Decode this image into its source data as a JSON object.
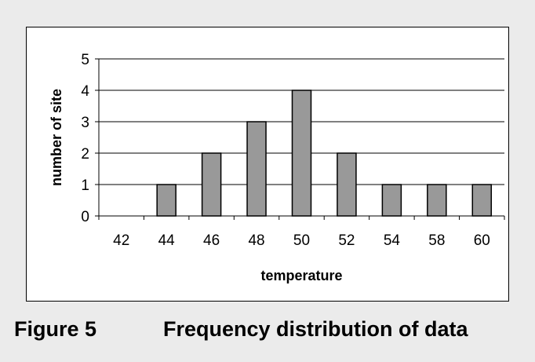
{
  "caption": {
    "figure_number": "Figure 5",
    "text": "Frequency distribution of data"
  },
  "chart_data": {
    "type": "bar",
    "categories": [
      "42",
      "44",
      "46",
      "48",
      "50",
      "52",
      "54",
      "58",
      "60"
    ],
    "values": [
      0,
      1,
      2,
      3,
      4,
      2,
      1,
      1,
      1
    ],
    "title": "",
    "xlabel": "temperature",
    "ylabel": "number of site",
    "ylim": [
      0,
      5
    ],
    "yticks": [
      0,
      1,
      2,
      3,
      4,
      5
    ],
    "grid": "horizontal",
    "legend": "none",
    "bar_color": "#999999",
    "bar_edge_color": "#000000"
  }
}
